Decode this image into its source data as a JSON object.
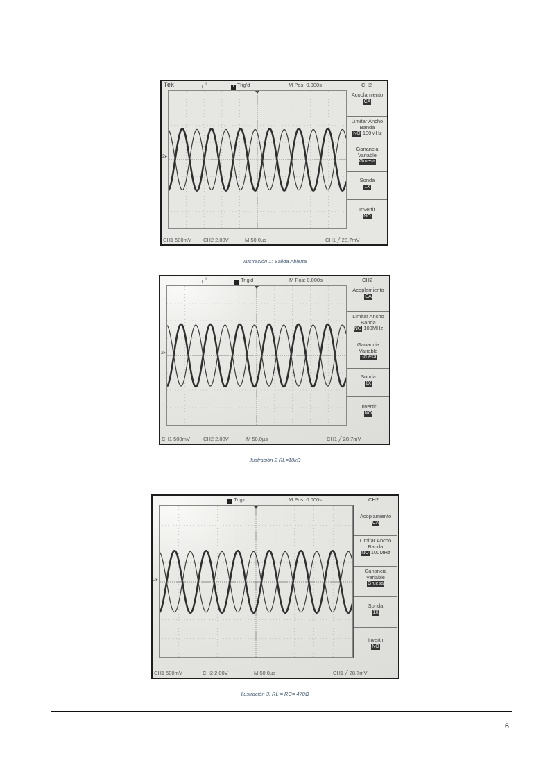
{
  "figures": [
    {
      "brand": "Tek",
      "trigger_mode_glyph": "┐└",
      "trigger_icon": "T",
      "trigger_status": "Trig'd",
      "m_pos": "M Pos: 0.000s",
      "channel": "CH2",
      "menu": [
        {
          "label": "Acoplamiento",
          "value": "CA"
        },
        {
          "label": "Limitar Ancho Banda",
          "value": "NO",
          "suffix": "100MHz"
        },
        {
          "label": "Ganancia Variable",
          "value": "Gruesa"
        },
        {
          "label": "Sonda",
          "value": "1X"
        },
        {
          "label": "Invertir",
          "value": "NO"
        }
      ],
      "ch1_scale": "CH1  500mV",
      "ch2_scale": "CH2  2.00V",
      "time_scale": "M 50.0µs",
      "trigger_readout": "CH1  ╱  28.7mV",
      "level_marker": "2▸",
      "caption": "Ilustración 1: Salida Abierta"
    },
    {
      "brand": "",
      "trigger_mode_glyph": "┐└",
      "trigger_icon": "T",
      "trigger_status": "Trig'd",
      "m_pos": "M Pos: 0.000s",
      "channel": "CH2",
      "menu": [
        {
          "label": "Acoplamiento",
          "value": "CA"
        },
        {
          "label": "Limitar Ancho Banda",
          "value": "NO",
          "suffix": "100MHz"
        },
        {
          "label": "Ganancia Variable",
          "value": "Gruesa"
        },
        {
          "label": "Sonda",
          "value": "1X"
        },
        {
          "label": "Invertir",
          "value": "NO"
        }
      ],
      "ch1_scale": "CH1  500mV",
      "ch2_scale": "CH2  2.00V",
      "time_scale": "M 50.0µs",
      "trigger_readout": "CH1  ╱  28.7mV",
      "level_marker": "2▸",
      "caption": "Ilustración 2 RL=10kΩ"
    },
    {
      "brand": "",
      "trigger_mode_glyph": "",
      "trigger_icon": "T",
      "trigger_status": "Trig'd",
      "m_pos": "M Pos: 0.000s",
      "channel": "CH2",
      "menu": [
        {
          "label": "Acoplamiento",
          "value": "CA"
        },
        {
          "label": "Limitar Ancho Banda",
          "value": "NO",
          "suffix": "100MHz"
        },
        {
          "label": "Ganancia Variable",
          "value": "Gruesa"
        },
        {
          "label": "Sonda",
          "value": "1X"
        },
        {
          "label": "Invertir",
          "value": "NO"
        }
      ],
      "ch1_scale": "CH1  500mV",
      "ch2_scale": "CH2  2.00V",
      "time_scale": "M 50.0µs",
      "trigger_readout": "CH1  ╱  28.7mV",
      "level_marker": "2▸",
      "caption": "Ilustración 3: RL = RC= 470Ω"
    }
  ],
  "page_number": "6"
}
